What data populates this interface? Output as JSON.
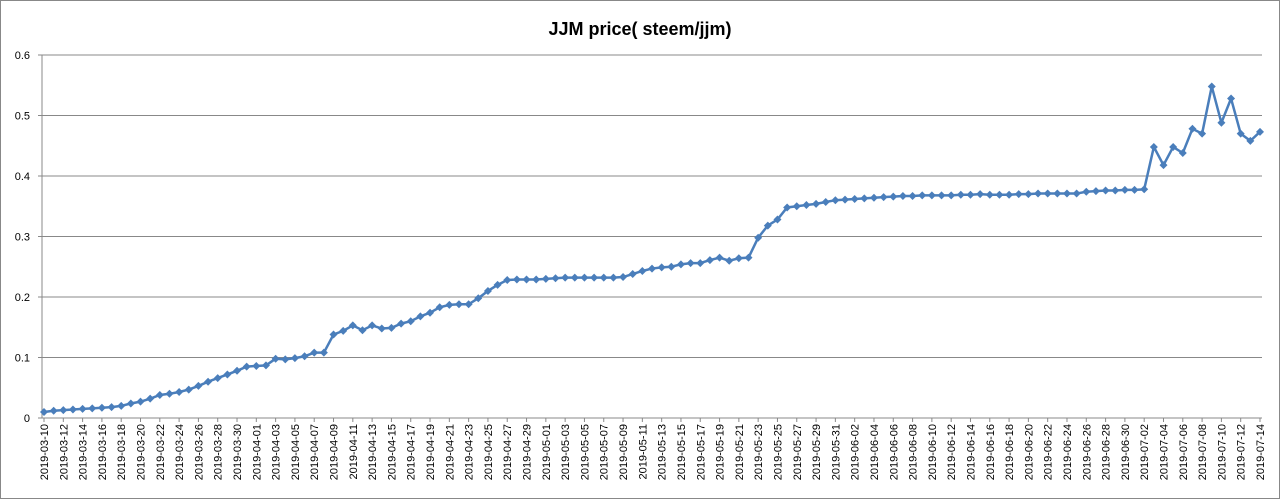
{
  "chart_data": {
    "type": "line",
    "title": "JJM price( steem/jjm)",
    "categories": [
      "2019-03-10",
      null,
      "2019-03-12",
      null,
      "2019-03-14",
      null,
      "2019-03-16",
      null,
      "2019-03-18",
      null,
      "2019-03-20",
      null,
      "2019-03-22",
      null,
      "2019-03-24",
      null,
      "2019-03-26",
      null,
      "2019-03-28",
      null,
      "2019-03-30",
      null,
      "2019-04-01",
      null,
      "2019-04-03",
      null,
      "2019-04-05",
      null,
      "2019-04-07",
      null,
      "2019-04-09",
      null,
      "2019-04-11",
      null,
      "2019-04-13",
      null,
      "2019-04-15",
      null,
      "2019-04-17",
      null,
      "2019-04-19",
      null,
      "2019-04-21",
      null,
      "2019-04-23",
      null,
      "2019-04-25",
      null,
      "2019-04-27",
      null,
      "2019-04-29",
      null,
      "2019-05-01",
      null,
      "2019-05-03",
      null,
      "2019-05-05",
      null,
      "2019-05-07",
      null,
      "2019-05-09",
      null,
      "2019-05-11",
      null,
      "2019-05-13",
      null,
      "2019-05-15",
      null,
      "2019-05-17",
      null,
      "2019-05-19",
      null,
      "2019-05-21",
      null,
      "2019-05-23",
      null,
      "2019-05-25",
      null,
      "2019-05-27",
      null,
      "2019-05-29",
      null,
      "2019-05-31",
      null,
      "2019-06-02",
      null,
      "2019-06-04",
      null,
      "2019-06-06",
      null,
      "2019-06-08",
      null,
      "2019-06-10",
      null,
      "2019-06-12",
      null,
      "2019-06-14",
      null,
      "2019-06-16",
      null,
      "2019-06-18",
      null,
      "2019-06-20",
      null,
      "2019-06-22",
      null,
      "2019-06-24",
      null,
      "2019-06-26",
      null,
      "2019-06-28",
      null,
      "2019-06-30",
      null,
      "2019-07-02",
      null,
      "2019-07-04",
      null,
      "2019-07-06",
      null,
      "2019-07-08",
      null,
      "2019-07-10",
      null,
      "2019-07-12",
      null,
      "2019-07-14"
    ],
    "series": [
      {
        "name": "JJM price",
        "color": "#4a7ebb",
        "values": [
          0.01,
          0.012,
          0.013,
          0.014,
          0.015,
          0.016,
          0.017,
          0.018,
          0.02,
          0.024,
          0.027,
          0.032,
          0.038,
          0.04,
          0.043,
          0.047,
          0.053,
          0.06,
          0.066,
          0.072,
          0.078,
          0.085,
          0.086,
          0.087,
          0.098,
          0.097,
          0.099,
          0.102,
          0.108,
          0.108,
          0.138,
          0.144,
          0.153,
          0.145,
          0.153,
          0.148,
          0.149,
          0.156,
          0.16,
          0.168,
          0.174,
          0.183,
          0.187,
          0.188,
          0.188,
          0.198,
          0.21,
          0.22,
          0.228,
          0.229,
          0.229,
          0.229,
          0.23,
          0.231,
          0.232,
          0.232,
          0.232,
          0.232,
          0.232,
          0.232,
          0.233,
          0.238,
          0.243,
          0.247,
          0.249,
          0.25,
          0.254,
          0.256,
          0.256,
          0.261,
          0.265,
          0.26,
          0.264,
          0.265,
          0.298,
          0.318,
          0.328,
          0.348,
          0.35,
          0.352,
          0.354,
          0.357,
          0.36,
          0.361,
          0.362,
          0.363,
          0.364,
          0.365,
          0.366,
          0.367,
          0.367,
          0.368,
          0.368,
          0.368,
          0.368,
          0.369,
          0.369,
          0.37,
          0.369,
          0.369,
          0.369,
          0.37,
          0.37,
          0.371,
          0.371,
          0.371,
          0.371,
          0.371,
          0.374,
          0.375,
          0.376,
          0.376,
          0.377,
          0.377,
          0.378,
          0.448,
          0.418,
          0.448,
          0.438,
          0.478,
          0.47,
          0.548,
          0.488,
          0.528,
          0.47,
          0.458,
          0.473
        ]
      }
    ],
    "ylim": [
      0,
      0.6
    ],
    "yticks": [
      0,
      0.1,
      0.2,
      0.3,
      0.4,
      0.5,
      0.6
    ],
    "grid": true
  }
}
